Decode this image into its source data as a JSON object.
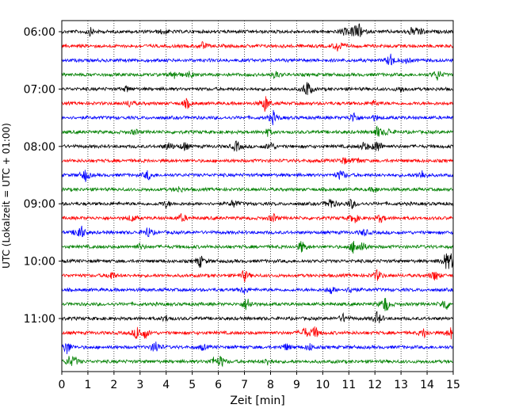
{
  "chart_data": {
    "type": "line",
    "title": "",
    "xlabel": "Zeit  [min]",
    "ylabel": "UTC (Lokalzeit = UTC + 01:00)",
    "xlim": [
      0,
      15
    ],
    "x_ticks": [
      0,
      1,
      2,
      3,
      4,
      5,
      6,
      7,
      8,
      9,
      10,
      11,
      12,
      13,
      14,
      15
    ],
    "y_tick_labels": [
      "06:00",
      "07:00",
      "08:00",
      "09:00",
      "10:00",
      "11:00"
    ],
    "start_time": "06:00",
    "row_interval_minutes": 15,
    "row_count": 24,
    "grid": "vertical-dotted",
    "colors": [
      "#000000",
      "#ff0000",
      "#0000ff",
      "#008000"
    ],
    "events": [
      {
        "row": 0,
        "events": [
          [
            1.1,
            0.5
          ],
          [
            3.9,
            0.4
          ],
          [
            10.8,
            0.5
          ],
          [
            11.2,
            0.9
          ],
          [
            11.4,
            0.8
          ],
          [
            13.7,
            0.7
          ],
          [
            13.4,
            0.5
          ]
        ]
      },
      {
        "row": 1,
        "events": [
          [
            5.4,
            0.5
          ],
          [
            10.6,
            1.0
          ]
        ]
      },
      {
        "row": 2,
        "events": [
          [
            12.6,
            1.0
          ],
          [
            13.2,
            0.4
          ]
        ]
      },
      {
        "row": 3,
        "events": [
          [
            4.3,
            0.6
          ],
          [
            4.9,
            0.4
          ],
          [
            8.2,
            0.5
          ],
          [
            14.4,
            0.8
          ]
        ]
      },
      {
        "row": 4,
        "events": [
          [
            9.4,
            1.3
          ],
          [
            2.5,
            0.4
          ],
          [
            13.0,
            0.4
          ]
        ]
      },
      {
        "row": 5,
        "events": [
          [
            2.6,
            0.5
          ],
          [
            4.8,
            0.7
          ],
          [
            7.8,
            1.2
          ],
          [
            12.0,
            0.4
          ]
        ]
      },
      {
        "row": 6,
        "events": [
          [
            8.1,
            0.9
          ],
          [
            11.2,
            0.8
          ],
          [
            12.0,
            0.4
          ]
        ]
      },
      {
        "row": 7,
        "events": [
          [
            2.8,
            0.4
          ],
          [
            7.9,
            0.5
          ],
          [
            12.1,
            0.8
          ],
          [
            12.5,
            0.5
          ]
        ]
      },
      {
        "row": 8,
        "events": [
          [
            4.1,
            0.6
          ],
          [
            4.7,
            0.6
          ],
          [
            6.7,
            0.8
          ],
          [
            8.0,
            0.7
          ],
          [
            11.6,
            0.7
          ],
          [
            12.1,
            1.0
          ]
        ]
      },
      {
        "row": 9,
        "events": [
          [
            10.8,
            0.5
          ],
          [
            11.3,
            0.4
          ]
        ]
      },
      {
        "row": 10,
        "events": [
          [
            0.9,
            0.9
          ],
          [
            3.3,
            0.7
          ],
          [
            10.7,
            0.8
          ],
          [
            13.8,
            0.7
          ]
        ]
      },
      {
        "row": 11,
        "events": [
          [
            4.5,
            0.4
          ],
          [
            12.0,
            0.4
          ]
        ]
      },
      {
        "row": 12,
        "events": [
          [
            4.0,
            0.5
          ],
          [
            6.6,
            0.6
          ],
          [
            10.3,
            0.9
          ],
          [
            11.1,
            0.7
          ]
        ]
      },
      {
        "row": 13,
        "events": [
          [
            2.7,
            0.5
          ],
          [
            4.6,
            0.6
          ],
          [
            8.1,
            0.6
          ],
          [
            11.2,
            0.8
          ],
          [
            12.2,
            0.6
          ]
        ]
      },
      {
        "row": 14,
        "events": [
          [
            0.7,
            1.4
          ],
          [
            3.3,
            0.8
          ],
          [
            11.6,
            0.5
          ]
        ]
      },
      {
        "row": 15,
        "events": [
          [
            3.0,
            0.4
          ],
          [
            9.2,
            0.9
          ],
          [
            11.2,
            1.0
          ],
          [
            11.5,
            0.7
          ]
        ]
      },
      {
        "row": 16,
        "events": [
          [
            5.3,
            0.9
          ],
          [
            14.9,
            1.1
          ],
          [
            14.7,
            0.9
          ]
        ]
      },
      {
        "row": 17,
        "events": [
          [
            1.9,
            0.6
          ],
          [
            7.0,
            0.8
          ],
          [
            12.1,
            0.8
          ],
          [
            14.3,
            0.8
          ]
        ]
      },
      {
        "row": 18,
        "events": [
          [
            7.0,
            0.5
          ],
          [
            10.3,
            0.6
          ],
          [
            11.1,
            0.5
          ]
        ]
      },
      {
        "row": 19,
        "events": [
          [
            7.1,
            1.1
          ],
          [
            12.4,
            1.3
          ],
          [
            14.7,
            1.0
          ]
        ]
      },
      {
        "row": 20,
        "events": [
          [
            4.0,
            0.4
          ],
          [
            10.8,
            0.6
          ],
          [
            12.1,
            1.0
          ]
        ]
      },
      {
        "row": 21,
        "events": [
          [
            2.9,
            1.0
          ],
          [
            3.2,
            0.7
          ],
          [
            9.3,
            0.8
          ],
          [
            9.7,
            0.9
          ],
          [
            13.9,
            0.7
          ],
          [
            14.9,
            0.8
          ]
        ]
      },
      {
        "row": 22,
        "events": [
          [
            0.2,
            1.0
          ],
          [
            3.6,
            1.0
          ],
          [
            5.4,
            0.4
          ],
          [
            8.6,
            0.5
          ],
          [
            9.5,
            0.5
          ]
        ]
      },
      {
        "row": 23,
        "events": [
          [
            0.3,
            0.7
          ],
          [
            0.5,
            0.5
          ],
          [
            6.1,
            0.8
          ],
          [
            5.8,
            0.5
          ],
          [
            7.9,
            0.5
          ]
        ]
      }
    ]
  }
}
